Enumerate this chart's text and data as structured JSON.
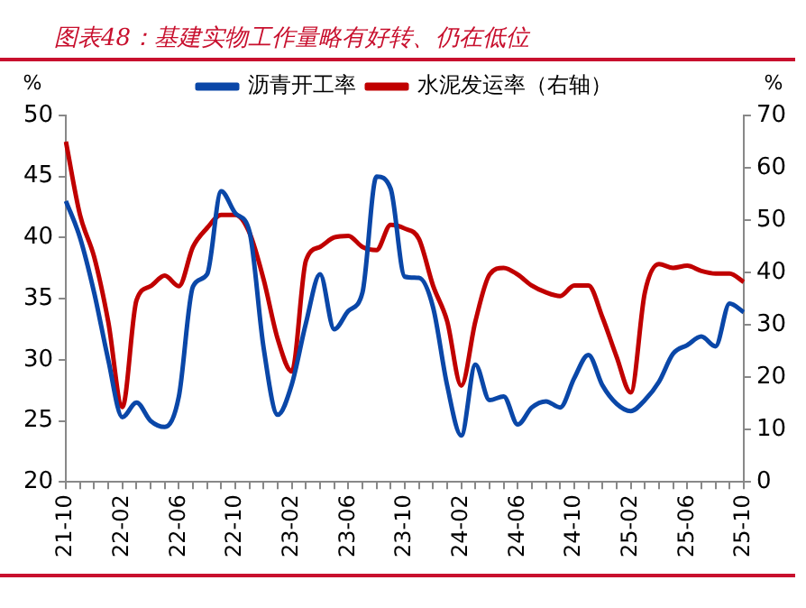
{
  "chart_data": {
    "type": "line",
    "title": "图表48：基建实物工作量略有好转、仍在低位",
    "ylabel": "%",
    "y2label": "%",
    "categories": [
      "21-10",
      null,
      null,
      null,
      "22-02",
      null,
      null,
      null,
      "22-06",
      null,
      null,
      null,
      "22-10",
      null,
      null,
      null,
      "23-02",
      null,
      null,
      null,
      "23-06",
      null,
      null,
      null,
      "23-10",
      null,
      null,
      null,
      "24-02",
      null,
      null,
      null,
      "24-06",
      null,
      null,
      null,
      "24-10",
      null,
      null,
      null,
      "25-02",
      null,
      null,
      null,
      "25-06",
      null,
      null,
      null,
      "25-10"
    ],
    "series": [
      {
        "name": "沥青开工率",
        "color": "#0a47a8",
        "values": [
          43,
          40,
          35.5,
          30,
          25.3,
          26.5,
          25,
          24.5,
          27,
          36,
          37,
          43.8,
          42,
          40.5,
          31,
          25.5,
          28,
          33,
          37,
          32.5,
          34,
          35.5,
          45,
          44,
          36.8,
          36.7,
          34.3,
          27.9,
          23.8,
          29.6,
          26.7,
          27,
          24.7,
          26.1,
          26.6,
          26.1,
          28.5,
          30.4,
          27.9,
          26.4,
          25.8,
          26.7,
          28.2,
          30.5,
          31.2,
          31.9,
          31.1,
          34.6,
          33.9
        ]
      },
      {
        "name": "水泥发运率（右轴）",
        "color": "#c00000",
        "axis": "y2",
        "values": [
          65,
          51,
          43,
          30.6,
          14.3,
          34.7,
          37.4,
          39.4,
          37.4,
          44.9,
          48.5,
          51,
          51,
          47.6,
          38.7,
          27.3,
          21.1,
          42.3,
          44.9,
          46.7,
          47,
          44.9,
          44.3,
          49.1,
          48.4,
          46.4,
          37.5,
          30.7,
          18.4,
          30.7,
          39.6,
          40.9,
          39.6,
          37.5,
          36.2,
          35.5,
          37.5,
          37.5,
          31.4,
          23.9,
          17.1,
          36.2,
          41.6,
          40.9,
          41.3,
          40.3,
          39.8,
          39.8,
          38.2
        ]
      }
    ],
    "ylim": [
      20,
      50
    ],
    "yticks": [
      20,
      25,
      30,
      35,
      40,
      45,
      50
    ],
    "y2lim": [
      0,
      70
    ],
    "y2ticks": [
      0,
      10,
      20,
      30,
      40,
      50,
      60,
      70
    ],
    "legend": "top",
    "grid": false,
    "marker": "none",
    "line_style": "solid"
  }
}
